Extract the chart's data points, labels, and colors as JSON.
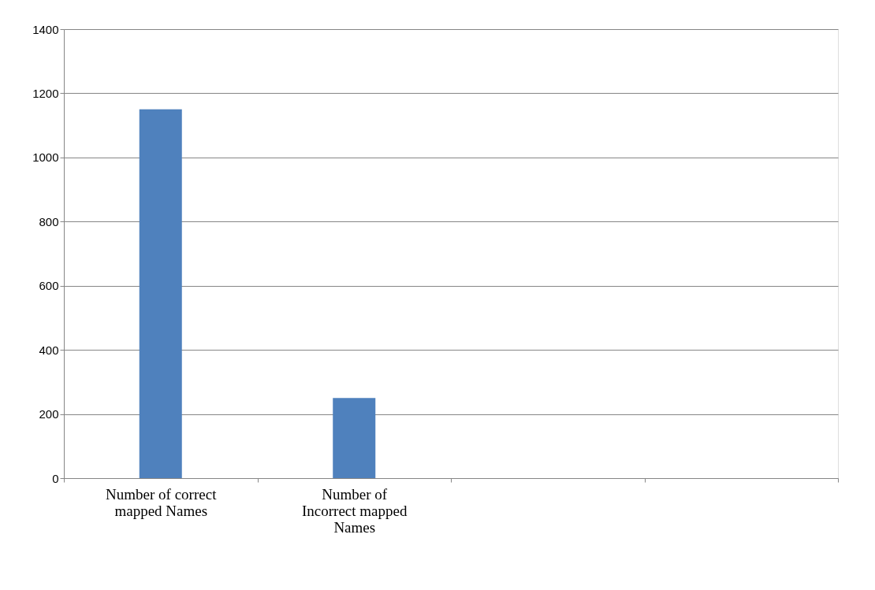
{
  "chart_data": {
    "type": "bar",
    "categories": [
      "Number of correct mapped Names",
      "Number of Incorrect mapped Names",
      null,
      null
    ],
    "values": [
      1150,
      250,
      null,
      null
    ],
    "color": "#4f81bd",
    "ylim": [
      0,
      1400
    ],
    "yticks": [
      0,
      200,
      400,
      600,
      800,
      1000,
      1200,
      1400
    ],
    "grid": "y"
  }
}
